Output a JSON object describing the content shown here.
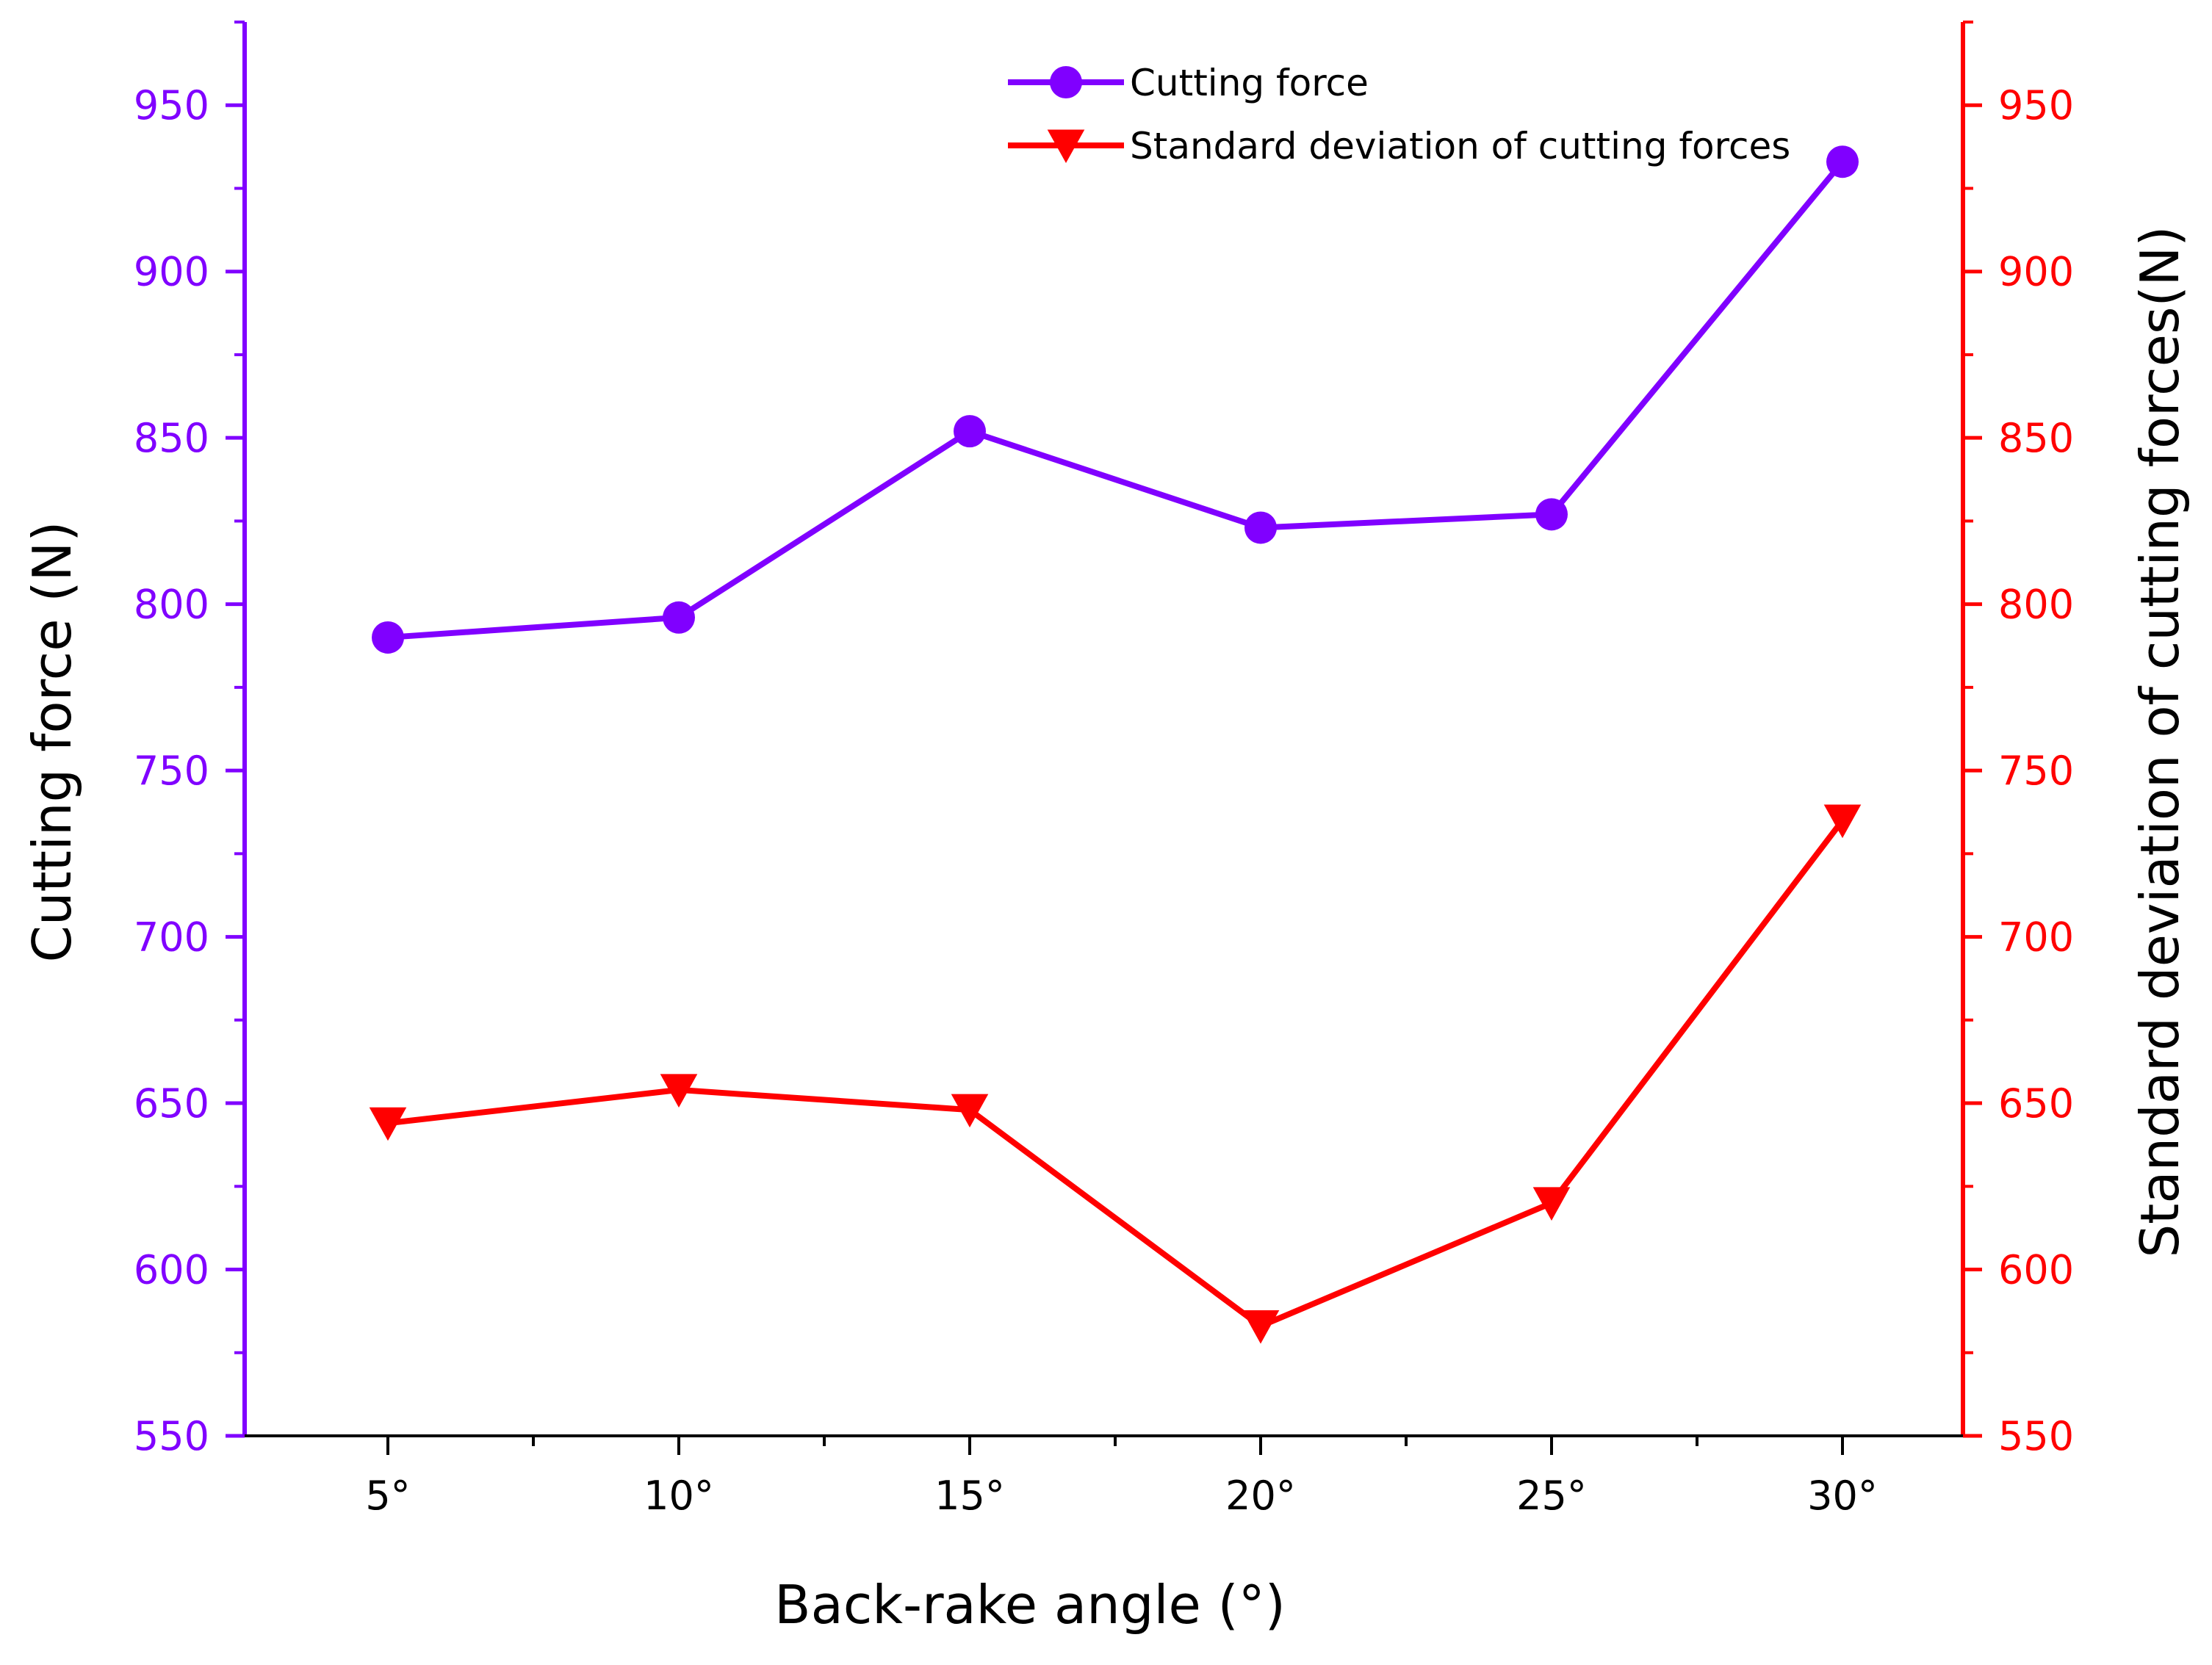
{
  "chart_data": {
    "type": "line",
    "categories": [
      "5°",
      "10°",
      "15°",
      "20°",
      "25°",
      "30°"
    ],
    "series": [
      {
        "name": "Cutting force",
        "axis": "left",
        "marker": "circle",
        "color": "#8000ff",
        "values": [
          790,
          796,
          852,
          823,
          827,
          933
        ]
      },
      {
        "name": "Standard deviation of cutting forces",
        "axis": "right",
        "marker": "triangle-down",
        "color": "#ff0000",
        "values": [
          644,
          654,
          648,
          583,
          620,
          735
        ]
      }
    ],
    "xlabel": "Back-rake angle (°)",
    "ylabel_left": "Cutting force (N)",
    "ylabel_right": "Standard deviation of cutting forces(N)",
    "ylim": [
      550,
      975
    ],
    "yticks": [
      "550",
      "600",
      "650",
      "700",
      "750",
      "800",
      "850",
      "900",
      "950"
    ],
    "legend_position": "top-center",
    "grid": false,
    "colors": {
      "left_axis": "#8000ff",
      "right_axis": "#ff0000",
      "bottom_axis": "#000000"
    }
  }
}
